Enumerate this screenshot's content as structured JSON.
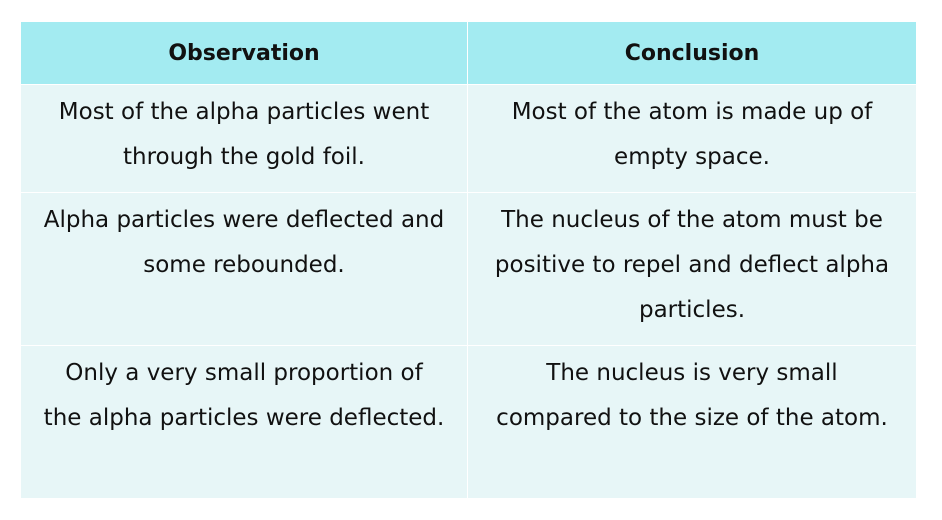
{
  "table": {
    "headers": [
      "Observation",
      "Conclusion"
    ],
    "rows": [
      {
        "observation": "Most of the alpha particles went through the gold foil.",
        "conclusion": "Most of the atom is made up of empty space."
      },
      {
        "observation": "Alpha particles were deflected and some rebounded.",
        "conclusion": "The nucleus of the atom must be positive to repel and deflect alpha particles."
      },
      {
        "observation": "Only a very small proportion of the alpha particles were deflected.",
        "conclusion": "The nucleus is very small compared to the size of the atom."
      }
    ]
  },
  "colors": {
    "header_bg": "#a3ebf1",
    "cell_bg": "#e7f6f7",
    "border": "#ffffff"
  }
}
